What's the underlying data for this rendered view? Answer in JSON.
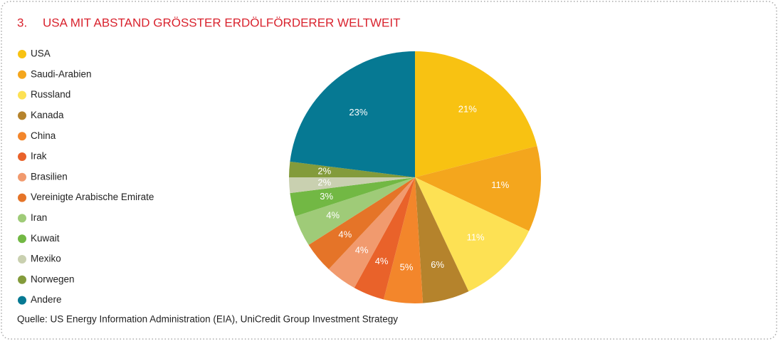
{
  "chart_data": {
    "type": "pie",
    "number": "3.",
    "title": "USA MIT ABSTAND GRÖSSTER ERDÖLFÖRDERER WELTWEIT",
    "source": "Quelle: US Energy Information Administration (EIA), UniCredit Group Investment Strategy",
    "categories": [
      "USA",
      "Saudi-Arabien",
      "Russland",
      "Kanada",
      "China",
      "Irak",
      "Brasilien",
      "Vereinigte Arabische Emirate",
      "Iran",
      "Kuwait",
      "Mexiko",
      "Norwegen",
      "Andere"
    ],
    "values": [
      21,
      11,
      11,
      6,
      5,
      4,
      4,
      4,
      4,
      3,
      2,
      2,
      23
    ],
    "value_labels": [
      "21%",
      "11%",
      "11%",
      "6%",
      "5%",
      "4%",
      "4%",
      "4%",
      "4%",
      "3%",
      "2%",
      "2%",
      "23%"
    ],
    "colors": [
      "#f8c212",
      "#f4a61d",
      "#fde154",
      "#b5832c",
      "#f3862b",
      "#e9622a",
      "#f19a6e",
      "#e57428",
      "#9fcb78",
      "#72b844",
      "#c9d0b0",
      "#839b3b",
      "#067993"
    ]
  }
}
